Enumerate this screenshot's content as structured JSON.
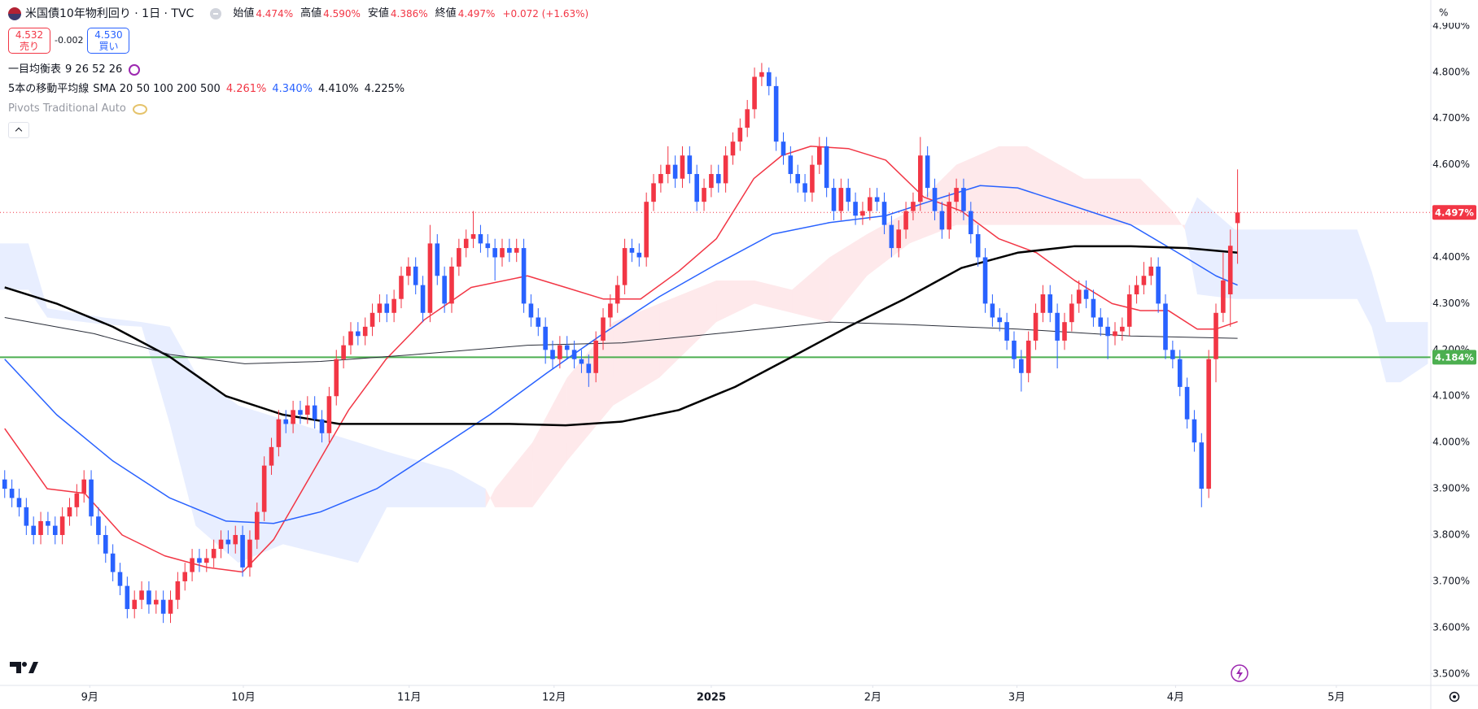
{
  "header": {
    "symbol": "米国債10年物利回り · 1日 · TVC",
    "ohlc": [
      {
        "label": "始値",
        "value": "4.474%"
      },
      {
        "label": "高値",
        "value": "4.590%"
      },
      {
        "label": "安値",
        "value": "4.386%"
      },
      {
        "label": "終値",
        "value": "4.497%"
      }
    ],
    "change": "+0.072 (+1.63%)",
    "sell": {
      "price": "4.532",
      "label": "売り"
    },
    "spread": "-0.002",
    "buy": {
      "price": "4.530",
      "label": "買い"
    },
    "indicators": [
      {
        "name": "一目均衡表",
        "params": "9 26 52 26"
      },
      {
        "name": "5本の移動平均線",
        "params": "SMA 20 50 100 200 500",
        "values": [
          "4.261%",
          "4.340%",
          "4.410%",
          "4.225%"
        ]
      },
      {
        "name": "Pivots Traditional Auto"
      }
    ],
    "axis_unit": "%"
  },
  "chart_data": {
    "type": "candlestick",
    "up_color": "#f23645",
    "down_color": "#2962ff",
    "grid": false,
    "xlim": [
      -0.65,
      197.8
    ],
    "ylim": [
      3.475,
      4.956
    ],
    "xticks": [
      {
        "value": 11.8,
        "label": "9月"
      },
      {
        "value": 33.1,
        "label": "10月"
      },
      {
        "value": 56.1,
        "label": "11月"
      },
      {
        "value": 76.2,
        "label": "12月"
      },
      {
        "value": 98.0,
        "label": "2025",
        "bold": true
      },
      {
        "value": 120.4,
        "label": "2月"
      },
      {
        "value": 140.4,
        "label": "3月"
      },
      {
        "value": 162.4,
        "label": "4月"
      },
      {
        "value": 184.7,
        "label": "5月"
      }
    ],
    "yticks": [
      {
        "value": 3.5,
        "label": "3.500%"
      },
      {
        "value": 3.6,
        "label": "3.600%"
      },
      {
        "value": 3.7,
        "label": "3.700%"
      },
      {
        "value": 3.8,
        "label": "3.800%"
      },
      {
        "value": 3.9,
        "label": "3.900%"
      },
      {
        "value": 4.0,
        "label": "4.000%"
      },
      {
        "value": 4.1,
        "label": "4.100%"
      },
      {
        "value": 4.2,
        "label": "4.200%"
      },
      {
        "value": 4.3,
        "label": "4.300%"
      },
      {
        "value": 4.4,
        "label": "4.400%"
      },
      {
        "value": 4.5,
        "label": "4.500%"
      },
      {
        "value": 4.6,
        "label": "4.600%"
      },
      {
        "value": 4.7,
        "label": "4.700%"
      },
      {
        "value": 4.8,
        "label": "4.800%"
      },
      {
        "value": 4.9,
        "label": "4.900%"
      }
    ],
    "open": [
      3.92,
      3.9,
      3.88,
      3.86,
      3.82,
      3.8,
      3.83,
      3.82,
      3.8,
      3.84,
      3.86,
      3.89,
      3.92,
      3.84,
      3.8,
      3.76,
      3.72,
      3.69,
      3.64,
      3.66,
      3.68,
      3.65,
      3.66,
      3.63,
      3.66,
      3.7,
      3.72,
      3.75,
      3.74,
      3.75,
      3.77,
      3.79,
      3.78,
      3.8,
      3.73,
      3.79,
      3.85,
      3.95,
      3.99,
      4.05,
      4.04,
      4.07,
      4.06,
      4.08,
      4.05,
      4.02,
      4.1,
      4.18,
      4.21,
      4.24,
      4.23,
      4.25,
      4.28,
      4.3,
      4.28,
      4.31,
      4.36,
      4.38,
      4.34,
      4.28,
      4.43,
      4.36,
      4.3,
      4.38,
      4.42,
      4.44,
      4.45,
      4.43,
      4.42,
      4.4,
      4.42,
      4.41,
      4.42,
      4.3,
      4.27,
      4.25,
      4.2,
      4.18,
      4.21,
      4.2,
      4.18,
      4.17,
      4.15,
      4.22,
      4.27,
      4.3,
      4.34,
      4.42,
      4.41,
      4.4,
      4.52,
      4.56,
      4.58,
      4.6,
      4.57,
      4.62,
      4.58,
      4.52,
      4.55,
      4.58,
      4.56,
      4.62,
      4.65,
      4.68,
      4.72,
      4.79,
      4.8,
      4.77,
      4.65,
      4.62,
      4.58,
      4.56,
      4.54,
      4.6,
      4.64,
      4.55,
      4.5,
      4.55,
      4.52,
      4.49,
      4.5,
      4.53,
      4.52,
      4.47,
      4.42,
      4.46,
      4.5,
      4.52,
      4.62,
      4.55,
      4.5,
      4.46,
      4.52,
      4.55,
      4.5,
      4.45,
      4.4,
      4.3,
      4.27,
      4.26,
      4.22,
      4.18,
      4.15,
      4.22,
      4.28,
      4.32,
      4.28,
      4.22,
      4.26,
      4.3,
      4.33,
      4.31,
      4.27,
      4.25,
      4.23,
      4.24,
      4.25,
      4.32,
      4.34,
      4.36,
      4.38,
      4.3,
      4.2,
      4.18,
      4.12,
      4.05,
      4.0,
      3.9,
      4.18,
      4.28,
      4.32,
      4.474
    ],
    "high": [
      3.94,
      3.92,
      3.9,
      3.88,
      3.84,
      3.85,
      3.85,
      3.84,
      3.86,
      3.88,
      3.91,
      3.94,
      3.94,
      3.86,
      3.82,
      3.78,
      3.74,
      3.71,
      3.68,
      3.7,
      3.7,
      3.68,
      3.68,
      3.68,
      3.72,
      3.74,
      3.77,
      3.77,
      3.77,
      3.79,
      3.81,
      3.81,
      3.82,
      3.82,
      3.81,
      3.87,
      3.97,
      4.01,
      4.07,
      4.07,
      4.09,
      4.09,
      4.1,
      4.1,
      4.07,
      4.12,
      4.2,
      4.23,
      4.26,
      4.26,
      4.27,
      4.3,
      4.32,
      4.32,
      4.33,
      4.38,
      4.4,
      4.4,
      4.36,
      4.47,
      4.45,
      4.38,
      4.4,
      4.44,
      4.46,
      4.5,
      4.47,
      4.45,
      4.44,
      4.44,
      4.44,
      4.44,
      4.44,
      4.32,
      4.29,
      4.27,
      4.22,
      4.23,
      4.23,
      4.22,
      4.2,
      4.19,
      4.24,
      4.29,
      4.32,
      4.36,
      4.44,
      4.44,
      4.43,
      4.54,
      4.58,
      4.6,
      4.64,
      4.62,
      4.64,
      4.64,
      4.6,
      4.57,
      4.6,
      4.6,
      4.64,
      4.67,
      4.7,
      4.74,
      4.81,
      4.82,
      4.81,
      4.79,
      4.67,
      4.64,
      4.6,
      4.58,
      4.62,
      4.66,
      4.66,
      4.57,
      4.57,
      4.57,
      4.54,
      4.52,
      4.55,
      4.55,
      4.54,
      4.49,
      4.48,
      4.52,
      4.54,
      4.66,
      4.64,
      4.57,
      4.52,
      4.54,
      4.57,
      4.57,
      4.52,
      4.47,
      4.42,
      4.32,
      4.29,
      4.28,
      4.24,
      4.2,
      4.24,
      4.3,
      4.34,
      4.34,
      4.3,
      4.28,
      4.32,
      4.35,
      4.35,
      4.33,
      4.29,
      4.27,
      4.26,
      4.27,
      4.34,
      4.36,
      4.39,
      4.4,
      4.4,
      4.32,
      4.22,
      4.2,
      4.14,
      4.07,
      4.02,
      4.2,
      4.3,
      4.41,
      4.46,
      4.59
    ],
    "low": [
      3.88,
      3.86,
      3.84,
      3.8,
      3.78,
      3.78,
      3.8,
      3.78,
      3.78,
      3.82,
      3.84,
      3.87,
      3.82,
      3.78,
      3.74,
      3.7,
      3.67,
      3.62,
      3.62,
      3.64,
      3.63,
      3.63,
      3.61,
      3.61,
      3.64,
      3.68,
      3.7,
      3.72,
      3.72,
      3.73,
      3.75,
      3.76,
      3.76,
      3.71,
      3.71,
      3.77,
      3.83,
      3.93,
      3.97,
      4.02,
      4.02,
      4.04,
      4.04,
      4.03,
      4.0,
      4.0,
      4.08,
      4.16,
      4.19,
      4.21,
      4.21,
      4.23,
      4.26,
      4.26,
      4.26,
      4.29,
      4.34,
      4.32,
      4.26,
      4.26,
      4.34,
      4.28,
      4.28,
      4.36,
      4.4,
      4.42,
      4.41,
      4.4,
      4.35,
      4.38,
      4.39,
      4.39,
      4.28,
      4.25,
      4.23,
      4.17,
      4.16,
      4.16,
      4.18,
      4.16,
      4.15,
      4.12,
      4.13,
      4.2,
      4.25,
      4.28,
      4.32,
      4.39,
      4.38,
      4.38,
      4.5,
      4.54,
      4.56,
      4.55,
      4.55,
      4.56,
      4.5,
      4.5,
      4.53,
      4.54,
      4.54,
      4.6,
      4.63,
      4.66,
      4.7,
      4.77,
      4.75,
      4.63,
      4.6,
      4.56,
      4.54,
      4.52,
      4.52,
      4.58,
      4.53,
      4.48,
      4.48,
      4.5,
      4.47,
      4.47,
      4.48,
      4.5,
      4.45,
      4.4,
      4.4,
      4.44,
      4.48,
      4.5,
      4.53,
      4.48,
      4.44,
      4.44,
      4.5,
      4.48,
      4.43,
      4.38,
      4.28,
      4.25,
      4.24,
      4.2,
      4.16,
      4.11,
      4.13,
      4.2,
      4.26,
      4.26,
      4.16,
      4.2,
      4.24,
      4.28,
      4.29,
      4.25,
      4.23,
      4.18,
      4.21,
      4.22,
      4.23,
      4.3,
      4.32,
      4.34,
      4.28,
      4.18,
      4.16,
      4.1,
      4.03,
      3.98,
      3.86,
      3.88,
      4.13,
      4.26,
      4.25,
      4.386
    ],
    "close": [
      3.9,
      3.88,
      3.86,
      3.82,
      3.8,
      3.83,
      3.82,
      3.8,
      3.84,
      3.86,
      3.89,
      3.92,
      3.84,
      3.8,
      3.76,
      3.72,
      3.69,
      3.64,
      3.66,
      3.68,
      3.65,
      3.66,
      3.63,
      3.66,
      3.7,
      3.72,
      3.75,
      3.74,
      3.75,
      3.77,
      3.79,
      3.78,
      3.8,
      3.73,
      3.79,
      3.85,
      3.95,
      3.99,
      4.05,
      4.04,
      4.07,
      4.06,
      4.08,
      4.05,
      4.02,
      4.1,
      4.18,
      4.21,
      4.24,
      4.23,
      4.25,
      4.28,
      4.3,
      4.28,
      4.31,
      4.36,
      4.38,
      4.34,
      4.28,
      4.43,
      4.36,
      4.3,
      4.38,
      4.42,
      4.44,
      4.45,
      4.43,
      4.42,
      4.4,
      4.42,
      4.41,
      4.42,
      4.3,
      4.27,
      4.25,
      4.2,
      4.18,
      4.21,
      4.2,
      4.18,
      4.17,
      4.15,
      4.22,
      4.27,
      4.3,
      4.34,
      4.42,
      4.41,
      4.4,
      4.52,
      4.56,
      4.58,
      4.6,
      4.57,
      4.62,
      4.58,
      4.52,
      4.55,
      4.58,
      4.56,
      4.62,
      4.65,
      4.68,
      4.72,
      4.79,
      4.8,
      4.77,
      4.65,
      4.62,
      4.58,
      4.56,
      4.54,
      4.6,
      4.64,
      4.55,
      4.5,
      4.55,
      4.52,
      4.49,
      4.5,
      4.53,
      4.52,
      4.47,
      4.42,
      4.46,
      4.5,
      4.52,
      4.62,
      4.55,
      4.5,
      4.46,
      4.52,
      4.55,
      4.5,
      4.45,
      4.4,
      4.3,
      4.27,
      4.26,
      4.22,
      4.18,
      4.15,
      4.22,
      4.28,
      4.32,
      4.28,
      4.22,
      4.26,
      4.3,
      4.33,
      4.31,
      4.27,
      4.25,
      4.23,
      4.24,
      4.25,
      4.32,
      4.34,
      4.36,
      4.38,
      4.3,
      4.2,
      4.18,
      4.12,
      4.05,
      4.0,
      3.9,
      4.18,
      4.28,
      4.35,
      4.425,
      4.497
    ],
    "series": [
      {
        "color": "#f23645",
        "width": 1.5,
        "x": [
          0,
          5.9,
          11.1,
          16.3,
          22.2,
          28.1,
          33,
          37.3,
          42.5,
          47.7,
          52.9,
          58.2,
          64.7,
          72.5,
          77.8,
          83,
          88.2,
          93.5,
          98.7,
          103.9,
          107.8,
          111.8,
          117,
          122.2,
          127.5,
          132.7,
          137.9,
          143.1,
          148.4,
          153.6,
          157.5,
          161.4,
          165.4,
          168,
          171
        ],
        "values": [
          4.03,
          3.9,
          3.89,
          3.8,
          3.755,
          3.73,
          3.72,
          3.79,
          3.93,
          4.07,
          4.18,
          4.265,
          4.335,
          4.36,
          4.335,
          4.31,
          4.31,
          4.37,
          4.44,
          4.57,
          4.62,
          4.64,
          4.635,
          4.61,
          4.53,
          4.5,
          4.44,
          4.41,
          4.35,
          4.3,
          4.285,
          4.285,
          4.245,
          4.245,
          4.261
        ]
      },
      {
        "color": "#2962ff",
        "width": 1.5,
        "x": [
          0,
          7.2,
          15,
          22.9,
          30.7,
          37.3,
          43.8,
          51.6,
          59.5,
          67.3,
          75.2,
          83,
          90.8,
          98.7,
          106.5,
          114.4,
          122.2,
          130.1,
          135.3,
          140.5,
          148.4,
          156.2,
          162.7,
          168,
          171
        ],
        "values": [
          4.18,
          4.06,
          3.96,
          3.88,
          3.83,
          3.825,
          3.85,
          3.9,
          3.98,
          4.06,
          4.15,
          4.235,
          4.315,
          4.385,
          4.45,
          4.475,
          4.49,
          4.53,
          4.555,
          4.55,
          4.51,
          4.47,
          4.41,
          4.36,
          4.34
        ]
      },
      {
        "color": "#000000",
        "width": 2.5,
        "x": [
          0,
          7.2,
          15,
          22.9,
          30.7,
          38.6,
          46.4,
          54.2,
          62.1,
          70,
          77.8,
          85.6,
          93.5,
          101.3,
          109.2,
          117,
          124.8,
          132.7,
          140.5,
          148.4,
          156.2,
          164,
          171
        ],
        "values": [
          4.335,
          4.3,
          4.25,
          4.185,
          4.1,
          4.06,
          4.04,
          4.04,
          4.04,
          4.04,
          4.037,
          4.045,
          4.07,
          4.12,
          4.185,
          4.25,
          4.31,
          4.377,
          4.41,
          4.424,
          4.424,
          4.42,
          4.41
        ]
      },
      {
        "color": "#2a2e39",
        "width": 1,
        "x": [
          0,
          12.4,
          22.9,
          33.3,
          43.8,
          56.9,
          72.5,
          85.6,
          98.7,
          114.4,
          124.8,
          140.5,
          156.2,
          171
        ],
        "values": [
          4.27,
          4.235,
          4.19,
          4.17,
          4.175,
          4.19,
          4.21,
          4.215,
          4.235,
          4.26,
          4.255,
          4.245,
          4.23,
          4.225
        ]
      }
    ],
    "cloud": {
      "up_color": "rgba(242,54,69,0.11)",
      "down_color": "rgba(41,98,255,0.11)",
      "x": [
        -0.65,
        3.3,
        5.9,
        13.7,
        19,
        22.9,
        26.5,
        32.4,
        38.6,
        49,
        53,
        62.1,
        66.7,
        68,
        73.2,
        78,
        84.4,
        90.8,
        98.7,
        104,
        109.2,
        114.4,
        119.6,
        125.5,
        132,
        137.9,
        141.8,
        149.7,
        157.5,
        162,
        163.7,
        165.4,
        170.6,
        178.4,
        187.6,
        189.6,
        191.6,
        193.6,
        197.4
      ],
      "span_a": [
        4.33,
        4.33,
        4.27,
        4.255,
        4.25,
        4.04,
        3.82,
        3.74,
        3.78,
        3.74,
        3.86,
        3.86,
        3.86,
        3.9,
        4.0,
        4.14,
        4.26,
        4.3,
        4.35,
        4.35,
        4.33,
        4.4,
        4.45,
        4.5,
        4.6,
        4.64,
        4.64,
        4.57,
        4.57,
        4.5,
        4.46,
        4.32,
        4.31,
        4.31,
        4.31,
        4.25,
        4.13,
        4.13,
        4.17
      ],
      "span_b": [
        4.43,
        4.43,
        4.29,
        4.27,
        4.26,
        4.25,
        4.15,
        4.08,
        4.05,
        4.0,
        3.98,
        3.94,
        3.9,
        3.86,
        3.86,
        3.96,
        4.08,
        4.14,
        4.26,
        4.3,
        4.28,
        4.26,
        4.36,
        4.43,
        4.47,
        4.47,
        4.47,
        4.47,
        4.47,
        4.47,
        4.47,
        4.53,
        4.46,
        4.46,
        4.46,
        4.37,
        4.26,
        4.26,
        4.26
      ]
    },
    "hlines": [
      {
        "value": 4.184,
        "label": "4.184%",
        "color": "#4caf50",
        "style": "solid"
      },
      {
        "value": 4.497,
        "label": "4.497%",
        "color": "#f23645",
        "style": "dotted"
      }
    ]
  }
}
